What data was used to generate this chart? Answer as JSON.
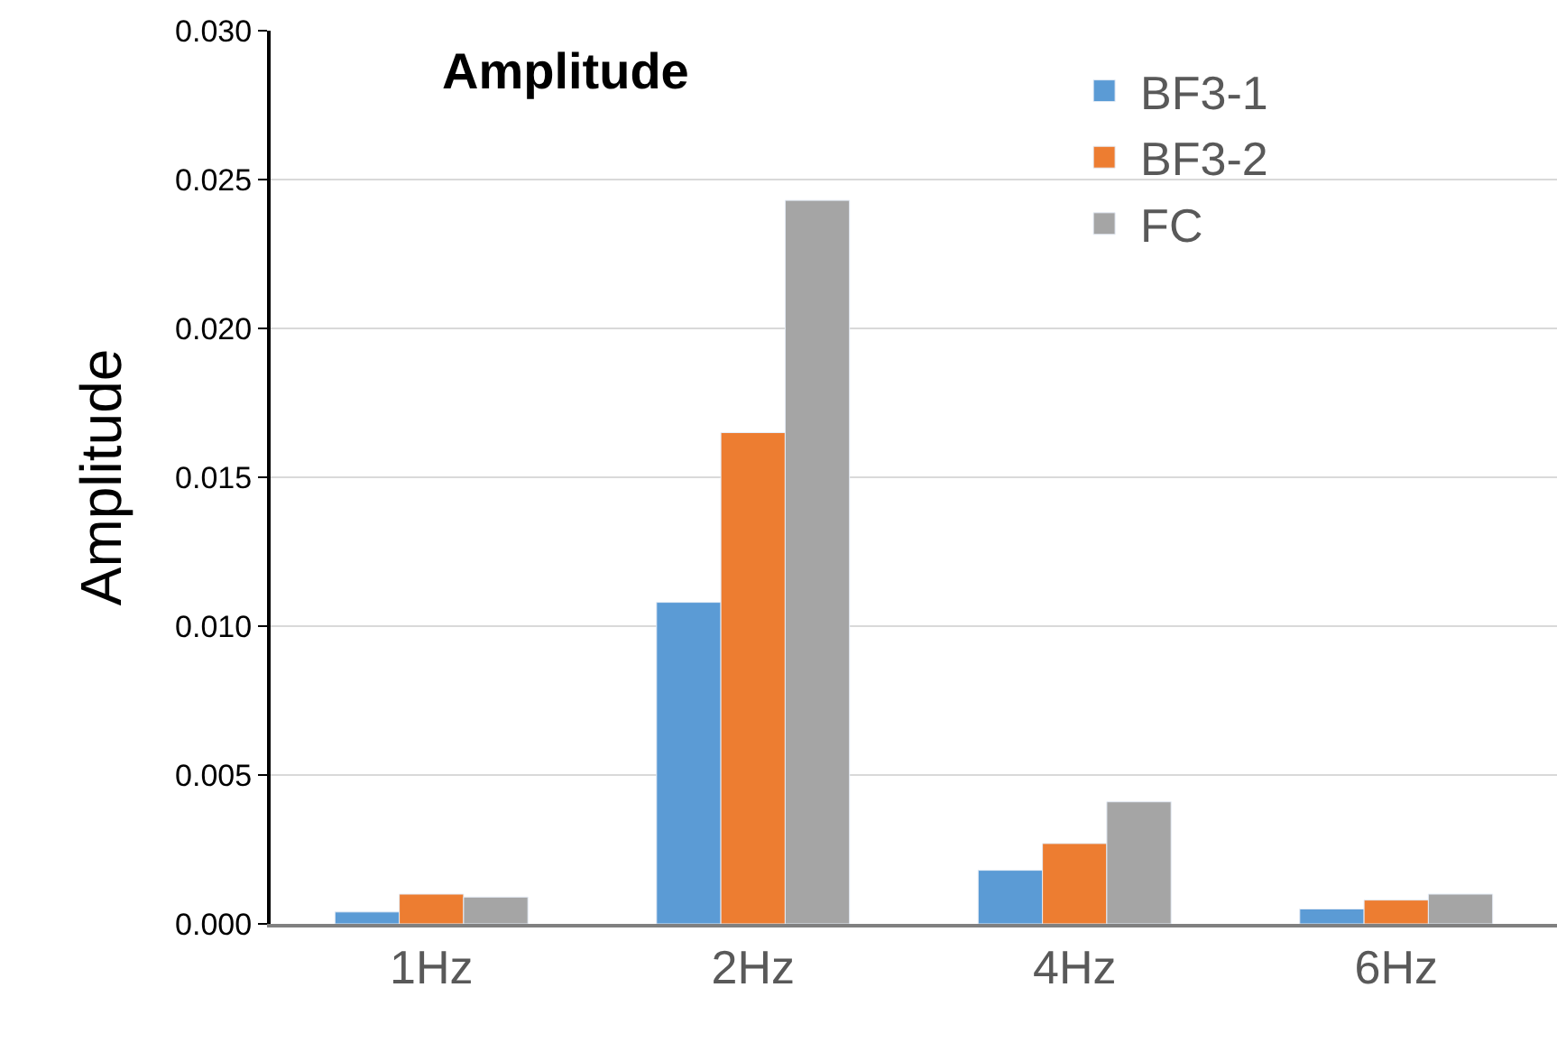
{
  "chart_data": {
    "type": "bar",
    "title": "Amplitude",
    "ylabel": "Amplitude",
    "categories": [
      "1Hz",
      "2Hz",
      "4Hz",
      "6Hz"
    ],
    "series": [
      {
        "name": "BF3-1",
        "color": "#5b9bd5",
        "values": [
          0.0004,
          0.0108,
          0.0018,
          0.0005
        ]
      },
      {
        "name": "BF3-2",
        "color": "#ed7d31",
        "values": [
          0.001,
          0.0165,
          0.0027,
          0.0008
        ]
      },
      {
        "name": "FC",
        "color": "#a5a5a5",
        "values": [
          0.0009,
          0.0243,
          0.0041,
          0.001
        ]
      }
    ],
    "ylim": [
      0,
      0.03
    ],
    "yticks": [
      {
        "value": 0,
        "label": "0.000"
      },
      {
        "value": 0.005,
        "label": "0.005"
      },
      {
        "value": 0.01,
        "label": "0.010"
      },
      {
        "value": 0.015,
        "label": "0.015"
      },
      {
        "value": 0.02,
        "label": "0.020"
      },
      {
        "value": 0.025,
        "label": "0.025"
      },
      {
        "value": 0.03,
        "label": "0.030"
      }
    ],
    "grid": "y",
    "legend": "top right"
  }
}
